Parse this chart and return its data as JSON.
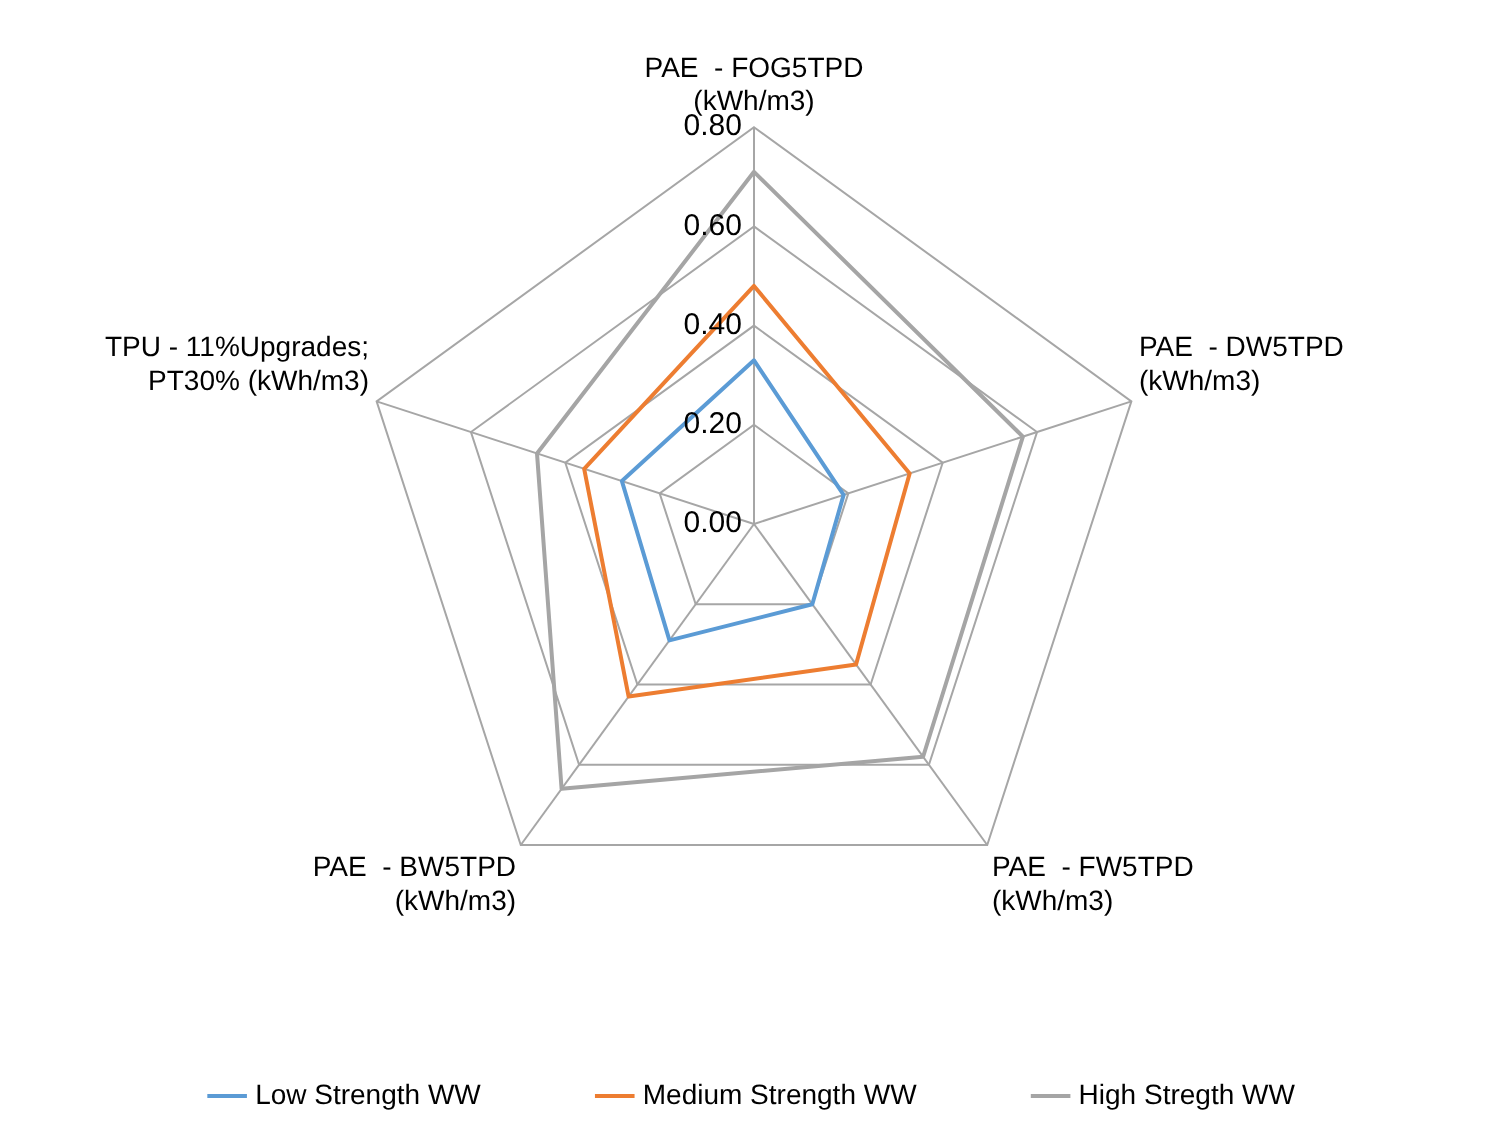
{
  "chart_data": {
    "type": "radar",
    "categories": [
      "PAE  - FOG5TPD\n(kWh/m3)",
      "PAE  - DW5TPD\n(kWh/m3)",
      "PAE  - FW5TPD\n(kWh/m3)",
      "PAE  - BW5TPD\n(kWh/m3)",
      "TPU - 11%Upgrades;\nPT30% (kWh/m3)"
    ],
    "series": [
      {
        "name": "Low Strength WW",
        "color": "#5b9bd5",
        "values": [
          0.33,
          0.19,
          0.2,
          0.29,
          0.28
        ]
      },
      {
        "name": "Medium Strength WW",
        "color": "#ed7d31",
        "values": [
          0.48,
          0.33,
          0.35,
          0.43,
          0.36
        ]
      },
      {
        "name": "High Stregth WW",
        "color": "#a5a5a5",
        "values": [
          0.71,
          0.57,
          0.58,
          0.66,
          0.46
        ]
      }
    ],
    "ylim": [
      0,
      0.8
    ],
    "yticks": [
      {
        "value": 0,
        "label": "0.00"
      },
      {
        "value": 0.2,
        "label": "0.20"
      },
      {
        "value": 0.4,
        "label": "0.40"
      },
      {
        "value": 0.6,
        "label": "0.60"
      },
      {
        "value": 0.8,
        "label": "0.80"
      }
    ],
    "grid": true,
    "legend": "bottom",
    "marker": "none"
  }
}
